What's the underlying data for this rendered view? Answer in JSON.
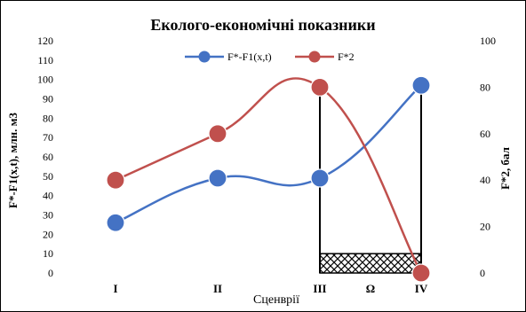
{
  "chart_data": {
    "type": "line",
    "title": "Еколого-економічні показники",
    "categories": [
      "I",
      "II",
      "III",
      "IV"
    ],
    "extra_category_label": "Ω",
    "xlabel": "Сценврії",
    "ylabel_left": "F*-F1(x,t), млн. м3",
    "ylabel_right": "F*2, бал",
    "ylim_left": [
      0,
      120
    ],
    "yticks_left": [
      0,
      10,
      20,
      30,
      40,
      50,
      60,
      70,
      80,
      90,
      100,
      110,
      120
    ],
    "ylim_right": [
      0,
      100
    ],
    "yticks_right": [
      0,
      20,
      40,
      60,
      80,
      100
    ],
    "legend_position": "top",
    "grid": false,
    "series": [
      {
        "name": "F*-F1(x,t)",
        "axis": "left",
        "color": "#4472C4",
        "values": [
          26,
          49,
          49,
          97
        ]
      },
      {
        "name": "F*2",
        "axis": "right",
        "color": "#C0504D",
        "values": [
          40,
          60,
          80,
          0
        ]
      }
    ],
    "annotations": {
      "vertical_lines_at": [
        "III",
        "IV"
      ],
      "hatched_band_left_axis": [
        0,
        10
      ]
    }
  }
}
